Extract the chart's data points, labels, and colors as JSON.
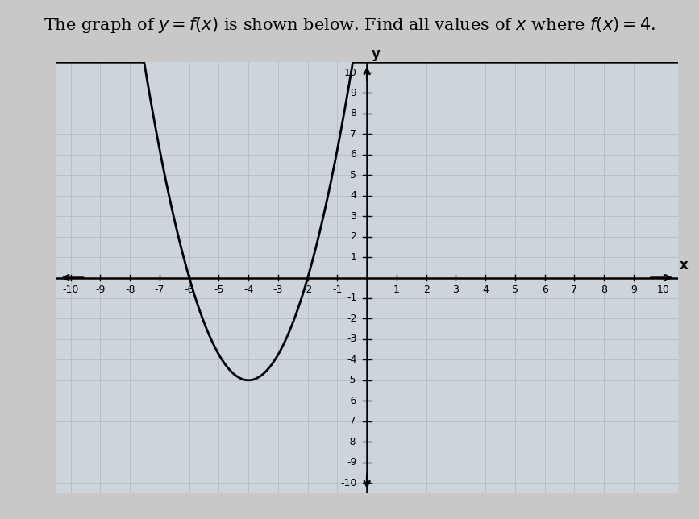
{
  "title_math": "The graph of $y = f(x)$ is shown below. Find all values of $x$ where $f(x) = 4$.",
  "xlim": [
    -10.5,
    10.5
  ],
  "ylim": [
    -10.5,
    10.5
  ],
  "xticks": [
    -10,
    -9,
    -8,
    -7,
    -6,
    -5,
    -4,
    -3,
    -2,
    -1,
    1,
    2,
    3,
    4,
    5,
    6,
    7,
    8,
    9,
    10
  ],
  "yticks": [
    -10,
    -9,
    -8,
    -7,
    -6,
    -5,
    -4,
    -3,
    -2,
    -1,
    1,
    2,
    3,
    4,
    5,
    6,
    7,
    8,
    9,
    10
  ],
  "curve_color": "#000000",
  "curve_linewidth": 2.0,
  "minor_grid_color": "#c8cfd6",
  "major_grid_color": "#b0b8c0",
  "grid_linewidth": 0.5,
  "plot_bg_color": "#cdd4da",
  "fig_bg_color": "#c8c8c8",
  "a": 1.25,
  "roots": [
    -6,
    -2
  ],
  "x_label": "x",
  "y_label": "y",
  "axis_label_fontsize": 12,
  "tick_label_fontsize": 9,
  "title_fontsize": 15
}
